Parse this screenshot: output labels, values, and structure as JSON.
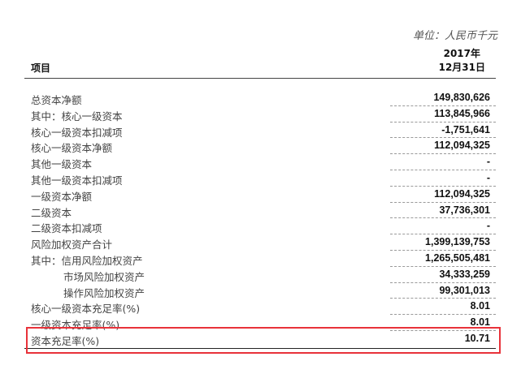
{
  "unit_label": "单位：人民币千元",
  "header": {
    "item": "项目",
    "date_line1": "2017年",
    "date_line2": "12月31日"
  },
  "rows": [
    {
      "label": "总资本净额",
      "value": "149,830,626"
    },
    {
      "label": "其中：核心一级资本",
      "value": "113,845,966"
    },
    {
      "label": "核心一级资本扣减项",
      "value": "-1,751,641"
    },
    {
      "label": "核心一级资本净额",
      "value": "112,094,325"
    },
    {
      "label": "其他一级资本",
      "value": "-"
    },
    {
      "label": "其他一级资本扣减项",
      "value": "-"
    },
    {
      "label": "一级资本净额",
      "value": "112,094,325"
    },
    {
      "label": "二级资本",
      "value": "37,736,301"
    },
    {
      "label": "二级资本扣减项",
      "value": "-"
    },
    {
      "label": "风险加权资产合计",
      "value": "1,399,139,753"
    },
    {
      "label": "其中：信用风险加权资产",
      "value": "1,265,505,481"
    },
    {
      "label": "市场风险加权资产",
      "value": "34,333,259",
      "indent": true
    },
    {
      "label": "操作风险加权资产",
      "value": "99,301,013",
      "indent": true
    },
    {
      "label": "核心一级资本充足率(%)",
      "value": "8.01"
    },
    {
      "label": "一级资本充足率(%)",
      "value": "8.01"
    },
    {
      "label": "资本充足率(%)",
      "value": "10.71"
    }
  ],
  "highlight_color": "#e8323a"
}
